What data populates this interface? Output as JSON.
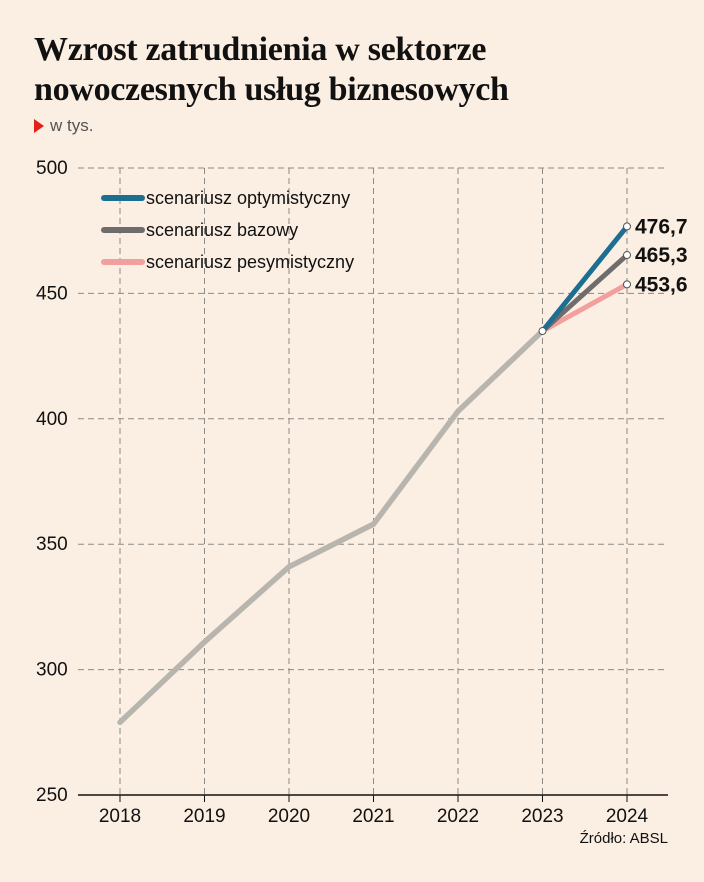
{
  "header": {
    "title": "Wzrost zatrudnienia w sektorze nowoczesnych usług biznesowych",
    "unit": "w tys."
  },
  "footer": {
    "source": "Źródło: ABSL"
  },
  "colors": {
    "background": "#fbeee2",
    "base_history": "#b7b5ad",
    "optimistic": "#1d6f92",
    "baseline": "#6f6d6c",
    "pessimistic": "#f2a09d",
    "unit_marker": "#e2211c"
  },
  "chart_data": {
    "type": "line",
    "title": "Wzrost zatrudnienia w sektorze nowoczesnych usług biznesowych",
    "ylabel": "w tys.",
    "xlabel": "",
    "ylim": [
      250,
      500
    ],
    "yticks": [
      250,
      300,
      350,
      400,
      450,
      500
    ],
    "categories": [
      "2018",
      "2019",
      "2020",
      "2021",
      "2022",
      "2023",
      "2024"
    ],
    "grid": true,
    "legend_position": "top-right",
    "series": [
      {
        "values": [
          279,
          311,
          341,
          358,
          403,
          435,
          null
        ],
        "color": "#b7b5ad"
      },
      {
        "name": "scenariusz optymistyczny",
        "values": [
          null,
          null,
          null,
          null,
          null,
          435,
          476.7
        ],
        "end_label": "476,7",
        "color": "#1d6f92"
      },
      {
        "name": "scenariusz bazowy",
        "values": [
          null,
          null,
          null,
          null,
          null,
          435,
          465.3
        ],
        "end_label": "465,3",
        "color": "#6f6d6c"
      },
      {
        "name": "scenariusz pesymistyczny",
        "values": [
          null,
          null,
          null,
          null,
          null,
          435,
          453.6
        ],
        "end_label": "453,6",
        "color": "#f2a09d"
      }
    ]
  }
}
